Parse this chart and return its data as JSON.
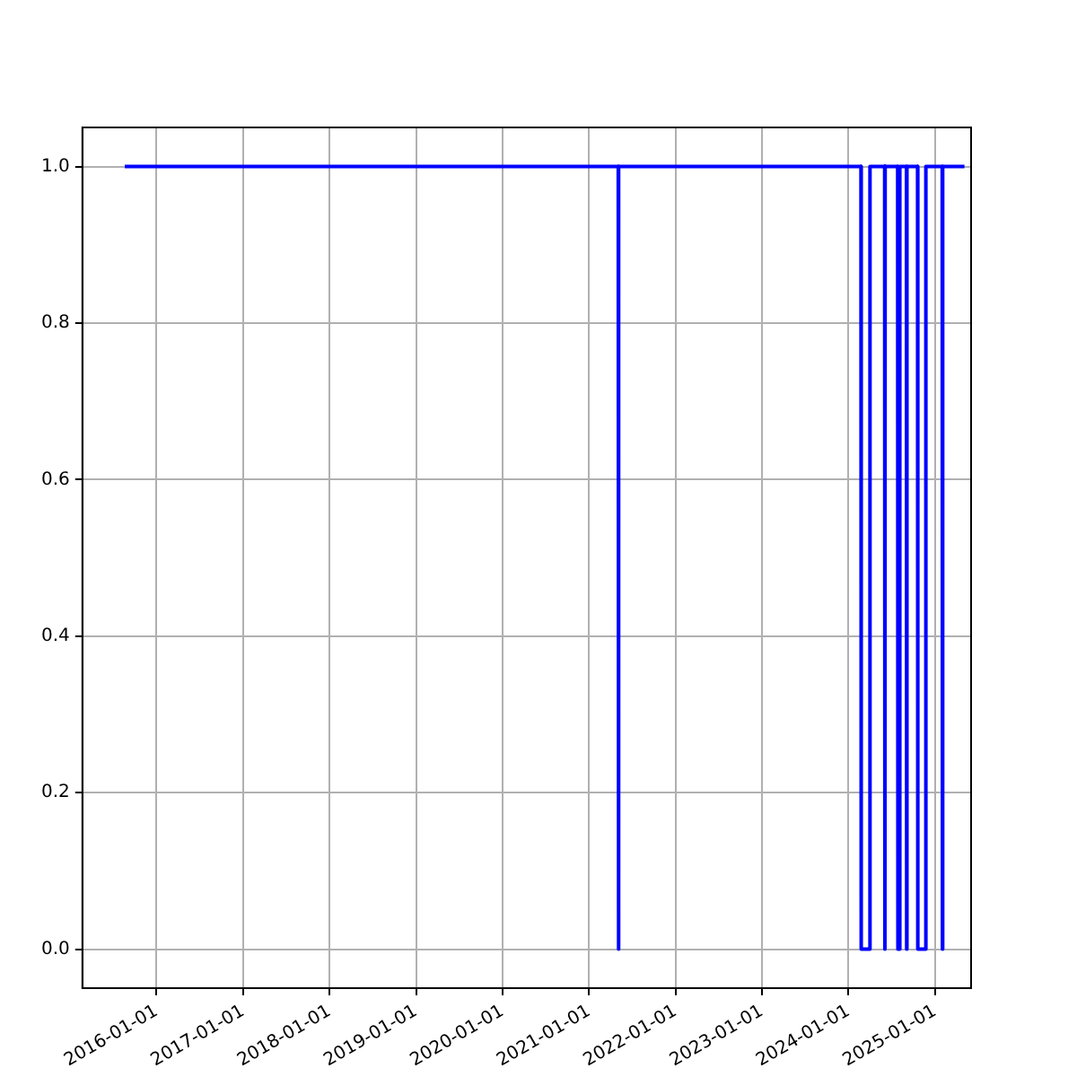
{
  "chart_data": {
    "type": "line",
    "x": [
      "2015-08-20",
      "2021-05-04",
      "2021-05-05",
      "2021-05-06",
      "2024-02-23",
      "2024-02-24",
      "2024-03-31",
      "2024-04-01",
      "2024-06-02",
      "2024-06-03",
      "2024-06-04",
      "2024-07-27",
      "2024-07-28",
      "2024-08-04",
      "2024-08-05",
      "2024-09-02",
      "2024-09-03",
      "2024-09-04",
      "2024-10-19",
      "2024-10-20",
      "2024-11-22",
      "2024-11-23",
      "2025-01-31",
      "2025-02-01",
      "2025-02-02",
      "2025-05-05"
    ],
    "series": [
      {
        "color": "#0000ff",
        "values": [
          1,
          1,
          0,
          1,
          1,
          0,
          0,
          1,
          1,
          0,
          1,
          1,
          0,
          0,
          1,
          1,
          0,
          1,
          1,
          0,
          0,
          1,
          1,
          0,
          1,
          1
        ]
      }
    ],
    "xlim": [
      "2015-02-22",
      "2025-06-02"
    ],
    "xticks": [
      "2016-01-01",
      "2017-01-01",
      "2018-01-01",
      "2019-01-01",
      "2020-01-01",
      "2021-01-01",
      "2022-01-01",
      "2023-01-01",
      "2024-01-01",
      "2025-01-01"
    ],
    "ylim": [
      -0.05,
      1.05
    ],
    "yticks": [
      {
        "value": 0,
        "label": "0.0"
      },
      {
        "value": 0.2,
        "label": "0.2"
      },
      {
        "value": 0.4,
        "label": "0.4"
      },
      {
        "value": 0.6,
        "label": "0.6"
      },
      {
        "value": 0.8,
        "label": "0.8"
      },
      {
        "value": 1,
        "label": "1.0"
      }
    ],
    "grid": true,
    "legend": false,
    "marker": "none",
    "line_style": "solid"
  }
}
